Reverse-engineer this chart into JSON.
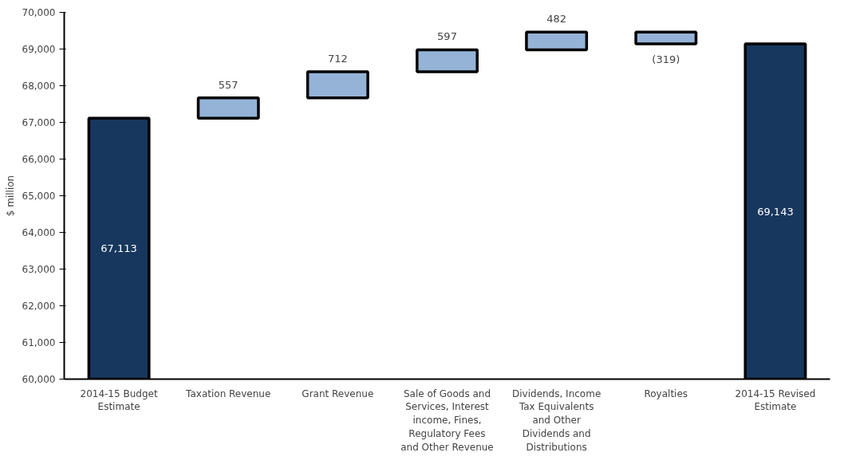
{
  "chart_data": {
    "type": "bar",
    "ylabel": "$ million",
    "categories": [
      "2014-15 Budget Estimate",
      "Taxation Revenue",
      "Grant Revenue",
      "Sale of Goods and Services, Interest income, Fines, Regulatory Fees and Other Revenue",
      "Dividends, Income Tax Equivalents and Other Dividends and Distributions",
      "Royalties",
      "2014-15 Revised Estimate"
    ],
    "values": [
      67113,
      557,
      712,
      597,
      482,
      -319,
      69143
    ],
    "base": [
      null,
      67113,
      67670,
      68382,
      68979,
      69461,
      null
    ],
    "colors": [
      "#17375e",
      "#95b3d7",
      "#95b3d7",
      "#95b3d7",
      "#95b3d7",
      "#95b3d7",
      "#17375e"
    ],
    "value_labels": [
      "67,113",
      "557",
      "712",
      "597",
      "482",
      "(319)",
      "69,143"
    ],
    "ylim": [
      60000,
      70000
    ],
    "yticks": [
      {
        "value": 60000,
        "label": "60,000"
      },
      {
        "value": 61000,
        "label": "61,000"
      },
      {
        "value": 62000,
        "label": "62,000"
      },
      {
        "value": 63000,
        "label": "63,000"
      },
      {
        "value": 64000,
        "label": "64,000"
      },
      {
        "value": 65000,
        "label": "65,000"
      },
      {
        "value": 66000,
        "label": "66,000"
      },
      {
        "value": 67000,
        "label": "67,000"
      },
      {
        "value": 68000,
        "label": "68,000"
      },
      {
        "value": 69000,
        "label": "69,000"
      },
      {
        "value": 70000,
        "label": "70,000"
      }
    ],
    "grid": false
  }
}
